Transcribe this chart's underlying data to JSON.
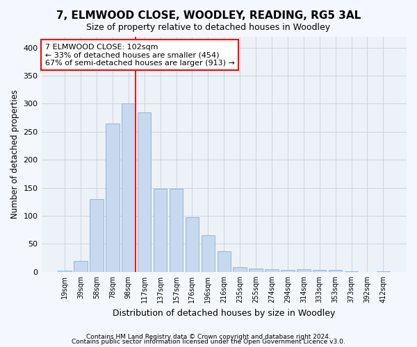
{
  "title": "7, ELMWOOD CLOSE, WOODLEY, READING, RG5 3AL",
  "subtitle": "Size of property relative to detached houses in Woodley",
  "xlabel": "Distribution of detached houses by size in Woodley",
  "ylabel": "Number of detached properties",
  "bar_color": "#c8d8ee",
  "bar_edge_color": "#90b8d8",
  "grid_color": "#c8d0dc",
  "categories": [
    "19sqm",
    "39sqm",
    "58sqm",
    "78sqm",
    "98sqm",
    "117sqm",
    "137sqm",
    "157sqm",
    "176sqm",
    "196sqm",
    "216sqm",
    "235sqm",
    "255sqm",
    "274sqm",
    "294sqm",
    "314sqm",
    "333sqm",
    "353sqm",
    "373sqm",
    "392sqm",
    "412sqm"
  ],
  "values": [
    2,
    20,
    130,
    265,
    300,
    285,
    148,
    148,
    97,
    65,
    37,
    8,
    6,
    5,
    4,
    5,
    4,
    3,
    1,
    0,
    1
  ],
  "ylim": [
    0,
    420
  ],
  "yticks": [
    0,
    50,
    100,
    150,
    200,
    250,
    300,
    350,
    400
  ],
  "marker_bin_index": 4,
  "annotation_line1": "7 ELMWOOD CLOSE: 102sqm",
  "annotation_line2": "← 33% of detached houses are smaller (454)",
  "annotation_line3": "67% of semi-detached houses are larger (913) →",
  "footnote_line1": "Contains HM Land Registry data © Crown copyright and database right 2024.",
  "footnote_line2": "Contains public sector information licensed under the Open Government Licence v3.0.",
  "background_color": "#f5f7ff",
  "plot_bg_color": "#edf1f8"
}
